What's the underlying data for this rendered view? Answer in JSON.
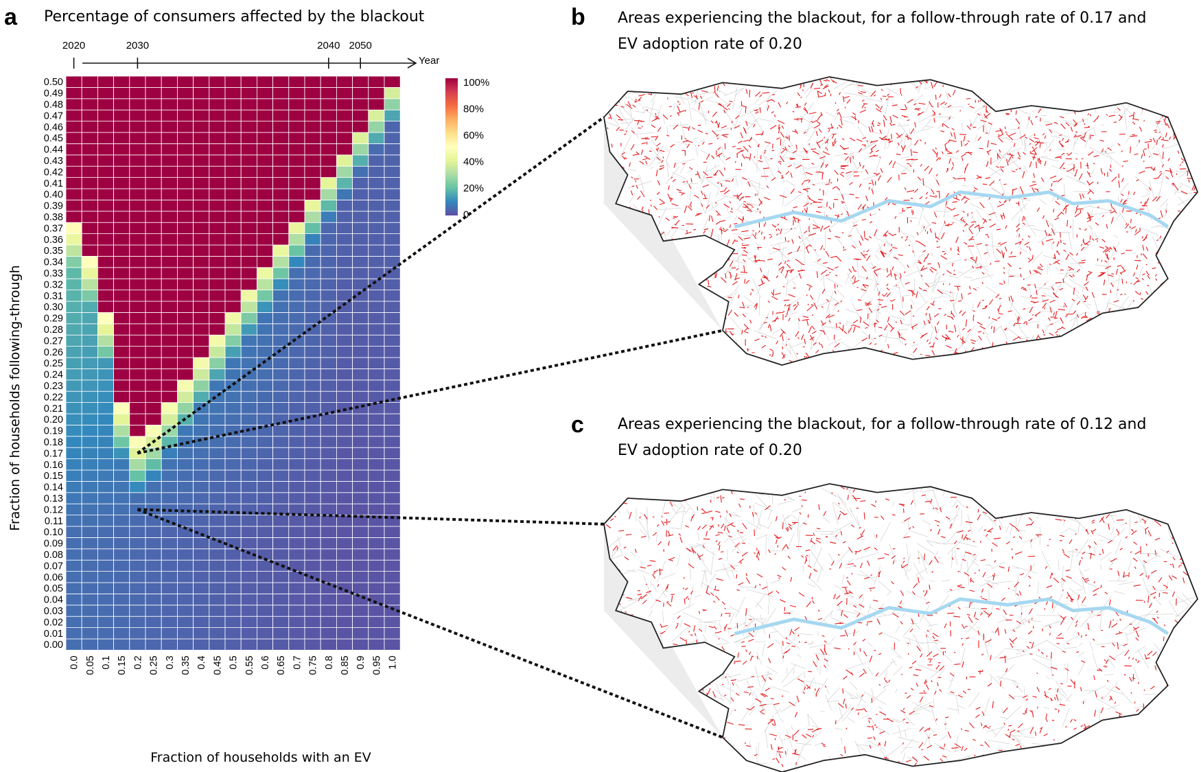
{
  "panel_a": {
    "letter": "a",
    "title": "Percentage of consumers affected by the blackout"
  },
  "panel_b": {
    "letter": "b",
    "title_line1": "Areas experiencing the blackout, for a follow-through rate of 0.17 and",
    "title_line2": "EV adoption rate of 0.20"
  },
  "panel_c": {
    "letter": "c",
    "title_line1": "Areas experiencing the blackout, for a follow-through rate of 0.12 and",
    "title_line2": "EV adoption rate of 0.20"
  },
  "year_axis": {
    "label": "Year",
    "ticks": [
      {
        "year": "2020",
        "ev": 0.0
      },
      {
        "year": "2030",
        "ev": 0.2
      },
      {
        "year": "2040",
        "ev": 0.8
      },
      {
        "year": "2050",
        "ev": 0.9
      }
    ]
  },
  "colorbar": {
    "labels": [
      "100%",
      "80%",
      "60%",
      "40%",
      "20%",
      "0"
    ],
    "stops": [
      "#5e4fa2",
      "#3288bd",
      "#66c2a5",
      "#abdda4",
      "#e6f598",
      "#ffffbf",
      "#fee08b",
      "#fdae61",
      "#f46d43",
      "#d53e4f",
      "#9e0142"
    ]
  },
  "colors": {
    "blackout_red": "#e41a1c",
    "thames": "#a6d8f0",
    "roads": "#cfcfcf",
    "boundary": "#222222",
    "zoom_fill": "#ececec"
  },
  "chart_data": {
    "type": "heatmap",
    "title": "Percentage of consumers affected by the blackout",
    "xlabel": "Fraction of households with an EV",
    "ylabel": "Fraction of households following-through",
    "x_labels": [
      "0.0",
      "0.05",
      "0.1",
      "0.15",
      "0.2",
      "0.25",
      "0.3",
      "0.35",
      "0.4",
      "0.45",
      "0.5",
      "0.55",
      "0.6",
      "0.65",
      "0.7",
      "0.75",
      "0.8",
      "0.85",
      "0.9",
      "0.95",
      "1.0"
    ],
    "y_labels": [
      "0.00",
      "0.01",
      "0.02",
      "0.03",
      "0.04",
      "0.05",
      "0.06",
      "0.07",
      "0.08",
      "0.09",
      "0.10",
      "0.11",
      "0.12",
      "0.13",
      "0.14",
      "0.15",
      "0.16",
      "0.17",
      "0.18",
      "0.19",
      "0.20",
      "0.21",
      "0.22",
      "0.23",
      "0.24",
      "0.25",
      "0.26",
      "0.27",
      "0.28",
      "0.29",
      "0.30",
      "0.31",
      "0.32",
      "0.33",
      "0.34",
      "0.35",
      "0.36",
      "0.37",
      "0.38",
      "0.39",
      "0.40",
      "0.41",
      "0.42",
      "0.43",
      "0.44",
      "0.45",
      "0.46",
      "0.47",
      "0.48",
      "0.49",
      "0.50"
    ],
    "value_range": [
      0,
      100
    ],
    "value_unit": "%",
    "blackout_boundary_follow_through": [
      0.38,
      0.35,
      0.3,
      0.22,
      0.19,
      0.2,
      0.22,
      0.24,
      0.26,
      0.28,
      0.3,
      0.32,
      0.34,
      0.36,
      0.38,
      0.4,
      0.42,
      0.44,
      0.46,
      0.48,
      0.5
    ],
    "highlight_points": [
      {
        "ev": 0.2,
        "follow_through": 0.17,
        "panel": "b"
      },
      {
        "ev": 0.2,
        "follow_through": 0.12,
        "panel": "c"
      }
    ]
  }
}
